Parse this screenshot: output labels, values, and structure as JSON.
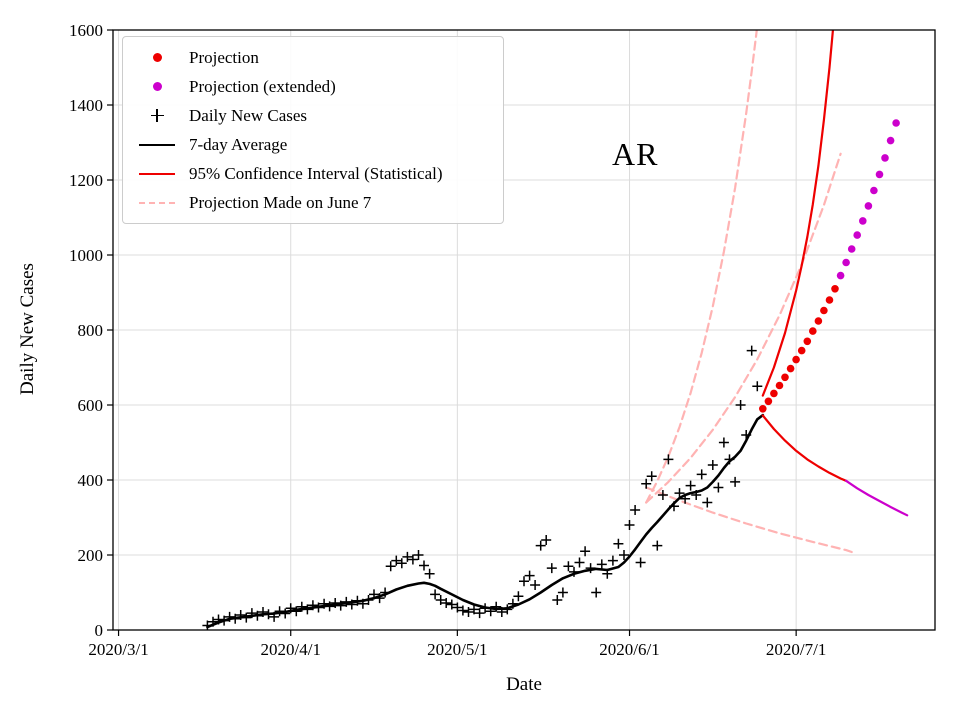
{
  "colors": {
    "red": "#ee0000",
    "magenta": "#cc00cc",
    "pink": "#ffb3b3",
    "black": "#000000",
    "grid": "#dcdcdc"
  },
  "legend": {
    "items": [
      {
        "label": "Projection",
        "marker": "dot",
        "color_key": "red"
      },
      {
        "label": "Projection (extended)",
        "marker": "dot",
        "color_key": "magenta"
      },
      {
        "label": "Daily New Cases",
        "marker": "plus",
        "color_key": "black"
      },
      {
        "label": "7-day Average",
        "marker": "line",
        "color_key": "black"
      },
      {
        "label": "95% Confidence Interval (Statistical)",
        "marker": "line",
        "color_key": "red"
      },
      {
        "label": "Projection Made on June 7",
        "marker": "dash",
        "color_key": "pink"
      }
    ]
  },
  "chart_data": {
    "type": "line",
    "annotation": "AR",
    "xlabel": "Date",
    "ylabel": "Daily New Cases",
    "x_unit": "days since 2020-03-01",
    "xlim": [
      -1,
      147
    ],
    "ylim": [
      0,
      1600
    ],
    "grid": true,
    "legend_position": "upper left",
    "xticks": [
      {
        "day": 0,
        "label": "2020/3/1"
      },
      {
        "day": 31,
        "label": "2020/4/1"
      },
      {
        "day": 61,
        "label": "2020/5/1"
      },
      {
        "day": 92,
        "label": "2020/6/1"
      },
      {
        "day": 122,
        "label": "2020/7/1"
      }
    ],
    "yticks": [
      0,
      200,
      400,
      600,
      800,
      1000,
      1200,
      1400,
      1600
    ],
    "series": [
      {
        "name": "projection-june7-upper-ci",
        "type": "dashed",
        "color_key": "pink",
        "width": 2.2,
        "points": [
          [
            95,
            340
          ],
          [
            97,
            397
          ],
          [
            99,
            463
          ],
          [
            101,
            541
          ],
          [
            103,
            632
          ],
          [
            105,
            739
          ],
          [
            107,
            863
          ],
          [
            109,
            1009
          ],
          [
            111,
            1179
          ],
          [
            113,
            1378
          ],
          [
            114,
            1490
          ],
          [
            115,
            1611
          ]
        ]
      },
      {
        "name": "projection-june7-central",
        "type": "dashed",
        "color_key": "pink",
        "width": 2.2,
        "points": [
          [
            95,
            340
          ],
          [
            99,
            395
          ],
          [
            103,
            459
          ],
          [
            107,
            534
          ],
          [
            111,
            621
          ],
          [
            115,
            722
          ],
          [
            119,
            839
          ],
          [
            123,
            975
          ],
          [
            127,
            1133
          ],
          [
            130,
            1270
          ]
        ]
      },
      {
        "name": "projection-june7-lower-ci",
        "type": "dashed",
        "color_key": "pink",
        "width": 2.2,
        "points": [
          [
            95,
            380
          ],
          [
            101,
            345
          ],
          [
            107,
            313
          ],
          [
            113,
            284
          ],
          [
            119,
            258
          ],
          [
            125,
            235
          ],
          [
            131,
            213
          ],
          [
            132,
            208
          ]
        ]
      },
      {
        "name": "daily-new-cases",
        "type": "plus",
        "color_key": "black",
        "points": [
          [
            16,
            12
          ],
          [
            17,
            22
          ],
          [
            18,
            28
          ],
          [
            19,
            25
          ],
          [
            20,
            35
          ],
          [
            21,
            30
          ],
          [
            22,
            40
          ],
          [
            23,
            33
          ],
          [
            24,
            45
          ],
          [
            25,
            38
          ],
          [
            26,
            48
          ],
          [
            27,
            42
          ],
          [
            28,
            35
          ],
          [
            29,
            50
          ],
          [
            30,
            44
          ],
          [
            31,
            58
          ],
          [
            32,
            50
          ],
          [
            33,
            62
          ],
          [
            34,
            55
          ],
          [
            35,
            66
          ],
          [
            36,
            60
          ],
          [
            37,
            70
          ],
          [
            38,
            63
          ],
          [
            39,
            72
          ],
          [
            40,
            65
          ],
          [
            41,
            75
          ],
          [
            42,
            68
          ],
          [
            43,
            78
          ],
          [
            44,
            70
          ],
          [
            45,
            80
          ],
          [
            46,
            95
          ],
          [
            47,
            85
          ],
          [
            48,
            100
          ],
          [
            49,
            170
          ],
          [
            50,
            185
          ],
          [
            51,
            178
          ],
          [
            52,
            195
          ],
          [
            53,
            188
          ],
          [
            54,
            200
          ],
          [
            55,
            172
          ],
          [
            56,
            150
          ],
          [
            57,
            95
          ],
          [
            58,
            80
          ],
          [
            59,
            72
          ],
          [
            60,
            68
          ],
          [
            61,
            60
          ],
          [
            62,
            52
          ],
          [
            63,
            48
          ],
          [
            64,
            55
          ],
          [
            65,
            45
          ],
          [
            66,
            58
          ],
          [
            67,
            50
          ],
          [
            68,
            62
          ],
          [
            69,
            48
          ],
          [
            70,
            55
          ],
          [
            71,
            70
          ],
          [
            72,
            90
          ],
          [
            73,
            130
          ],
          [
            74,
            145
          ],
          [
            75,
            120
          ],
          [
            76,
            225
          ],
          [
            77,
            240
          ],
          [
            78,
            165
          ],
          [
            79,
            80
          ],
          [
            80,
            100
          ],
          [
            81,
            170
          ],
          [
            82,
            155
          ],
          [
            83,
            180
          ],
          [
            84,
            210
          ],
          [
            85,
            165
          ],
          [
            86,
            100
          ],
          [
            87,
            175
          ],
          [
            88,
            150
          ],
          [
            89,
            185
          ],
          [
            90,
            230
          ],
          [
            91,
            200
          ],
          [
            92,
            280
          ],
          [
            93,
            320
          ],
          [
            94,
            180
          ],
          [
            95,
            390
          ],
          [
            96,
            410
          ],
          [
            97,
            225
          ],
          [
            98,
            360
          ],
          [
            99,
            455
          ],
          [
            100,
            330
          ],
          [
            101,
            365
          ],
          [
            102,
            350
          ],
          [
            103,
            385
          ],
          [
            104,
            360
          ],
          [
            105,
            415
          ],
          [
            106,
            340
          ],
          [
            107,
            440
          ],
          [
            108,
            380
          ],
          [
            109,
            500
          ],
          [
            110,
            455
          ],
          [
            111,
            395
          ],
          [
            112,
            600
          ],
          [
            113,
            520
          ],
          [
            114,
            745
          ],
          [
            115,
            650
          ]
        ]
      },
      {
        "name": "7-day-average",
        "type": "line",
        "color_key": "black",
        "width": 2.6,
        "points": [
          [
            16,
            8
          ],
          [
            18,
            20
          ],
          [
            20,
            30
          ],
          [
            22,
            34
          ],
          [
            24,
            38
          ],
          [
            26,
            42
          ],
          [
            28,
            44
          ],
          [
            30,
            48
          ],
          [
            32,
            54
          ],
          [
            34,
            58
          ],
          [
            36,
            62
          ],
          [
            38,
            66
          ],
          [
            40,
            70
          ],
          [
            42,
            74
          ],
          [
            44,
            78
          ],
          [
            46,
            85
          ],
          [
            48,
            95
          ],
          [
            50,
            108
          ],
          [
            52,
            118
          ],
          [
            54,
            124
          ],
          [
            55,
            126
          ],
          [
            56,
            123
          ],
          [
            57,
            118
          ],
          [
            58,
            110
          ],
          [
            60,
            95
          ],
          [
            62,
            80
          ],
          [
            64,
            68
          ],
          [
            66,
            60
          ],
          [
            68,
            56
          ],
          [
            70,
            58
          ],
          [
            72,
            68
          ],
          [
            74,
            82
          ],
          [
            76,
            100
          ],
          [
            78,
            120
          ],
          [
            80,
            138
          ],
          [
            82,
            150
          ],
          [
            84,
            158
          ],
          [
            86,
            163
          ],
          [
            88,
            160
          ],
          [
            90,
            168
          ],
          [
            91,
            180
          ],
          [
            92,
            196
          ],
          [
            93,
            215
          ],
          [
            94,
            235
          ],
          [
            95,
            255
          ],
          [
            96,
            272
          ],
          [
            97,
            288
          ],
          [
            98,
            305
          ],
          [
            99,
            322
          ],
          [
            100,
            338
          ],
          [
            101,
            352
          ],
          [
            102,
            360
          ],
          [
            103,
            365
          ],
          [
            104,
            368
          ],
          [
            105,
            372
          ],
          [
            106,
            380
          ],
          [
            107,
            395
          ],
          [
            108,
            412
          ],
          [
            109,
            432
          ],
          [
            110,
            450
          ],
          [
            111,
            462
          ],
          [
            112,
            478
          ],
          [
            113,
            505
          ],
          [
            114,
            535
          ],
          [
            115,
            562
          ],
          [
            116,
            573
          ]
        ]
      },
      {
        "name": "ci-upper",
        "type": "line",
        "color_key": "red",
        "width": 2.2,
        "points": [
          [
            116,
            625
          ],
          [
            118,
            700
          ],
          [
            120,
            792
          ],
          [
            122,
            905
          ],
          [
            123,
            972
          ],
          [
            124,
            1048
          ],
          [
            125,
            1135
          ],
          [
            126,
            1238
          ],
          [
            127,
            1360
          ],
          [
            128,
            1500
          ],
          [
            129,
            1660
          ]
        ]
      },
      {
        "name": "ci-lower",
        "type": "line",
        "color_key": "red",
        "width": 2.2,
        "points": [
          [
            116,
            572
          ],
          [
            118,
            536
          ],
          [
            120,
            505
          ],
          [
            122,
            478
          ],
          [
            124,
            455
          ],
          [
            126,
            436
          ],
          [
            128,
            419
          ],
          [
            130,
            404
          ],
          [
            131,
            398
          ]
        ]
      },
      {
        "name": "ci-lower-extended",
        "type": "line",
        "color_key": "magenta",
        "width": 2.2,
        "points": [
          [
            131,
            398
          ],
          [
            133,
            378
          ],
          [
            135,
            360
          ],
          [
            137,
            344
          ],
          [
            139,
            328
          ],
          [
            141,
            313
          ],
          [
            142,
            306
          ]
        ]
      },
      {
        "name": "projection",
        "type": "dots",
        "color_key": "red",
        "points": [
          [
            116,
            590
          ],
          [
            117,
            610
          ],
          [
            118,
            631
          ],
          [
            119,
            652
          ],
          [
            120,
            674
          ],
          [
            121,
            697
          ],
          [
            122,
            721
          ],
          [
            123,
            745
          ],
          [
            124,
            770
          ],
          [
            125,
            797
          ],
          [
            126,
            824
          ],
          [
            127,
            852
          ],
          [
            128,
            880
          ],
          [
            129,
            910
          ]
        ]
      },
      {
        "name": "projection-extended",
        "type": "dots",
        "color_key": "magenta",
        "points": [
          [
            130,
            945
          ],
          [
            131,
            980
          ],
          [
            132,
            1016
          ],
          [
            133,
            1053
          ],
          [
            134,
            1091
          ],
          [
            135,
            1131
          ],
          [
            136,
            1172
          ],
          [
            137,
            1215
          ],
          [
            138,
            1259
          ],
          [
            139,
            1305
          ],
          [
            140,
            1352
          ]
        ]
      }
    ]
  }
}
